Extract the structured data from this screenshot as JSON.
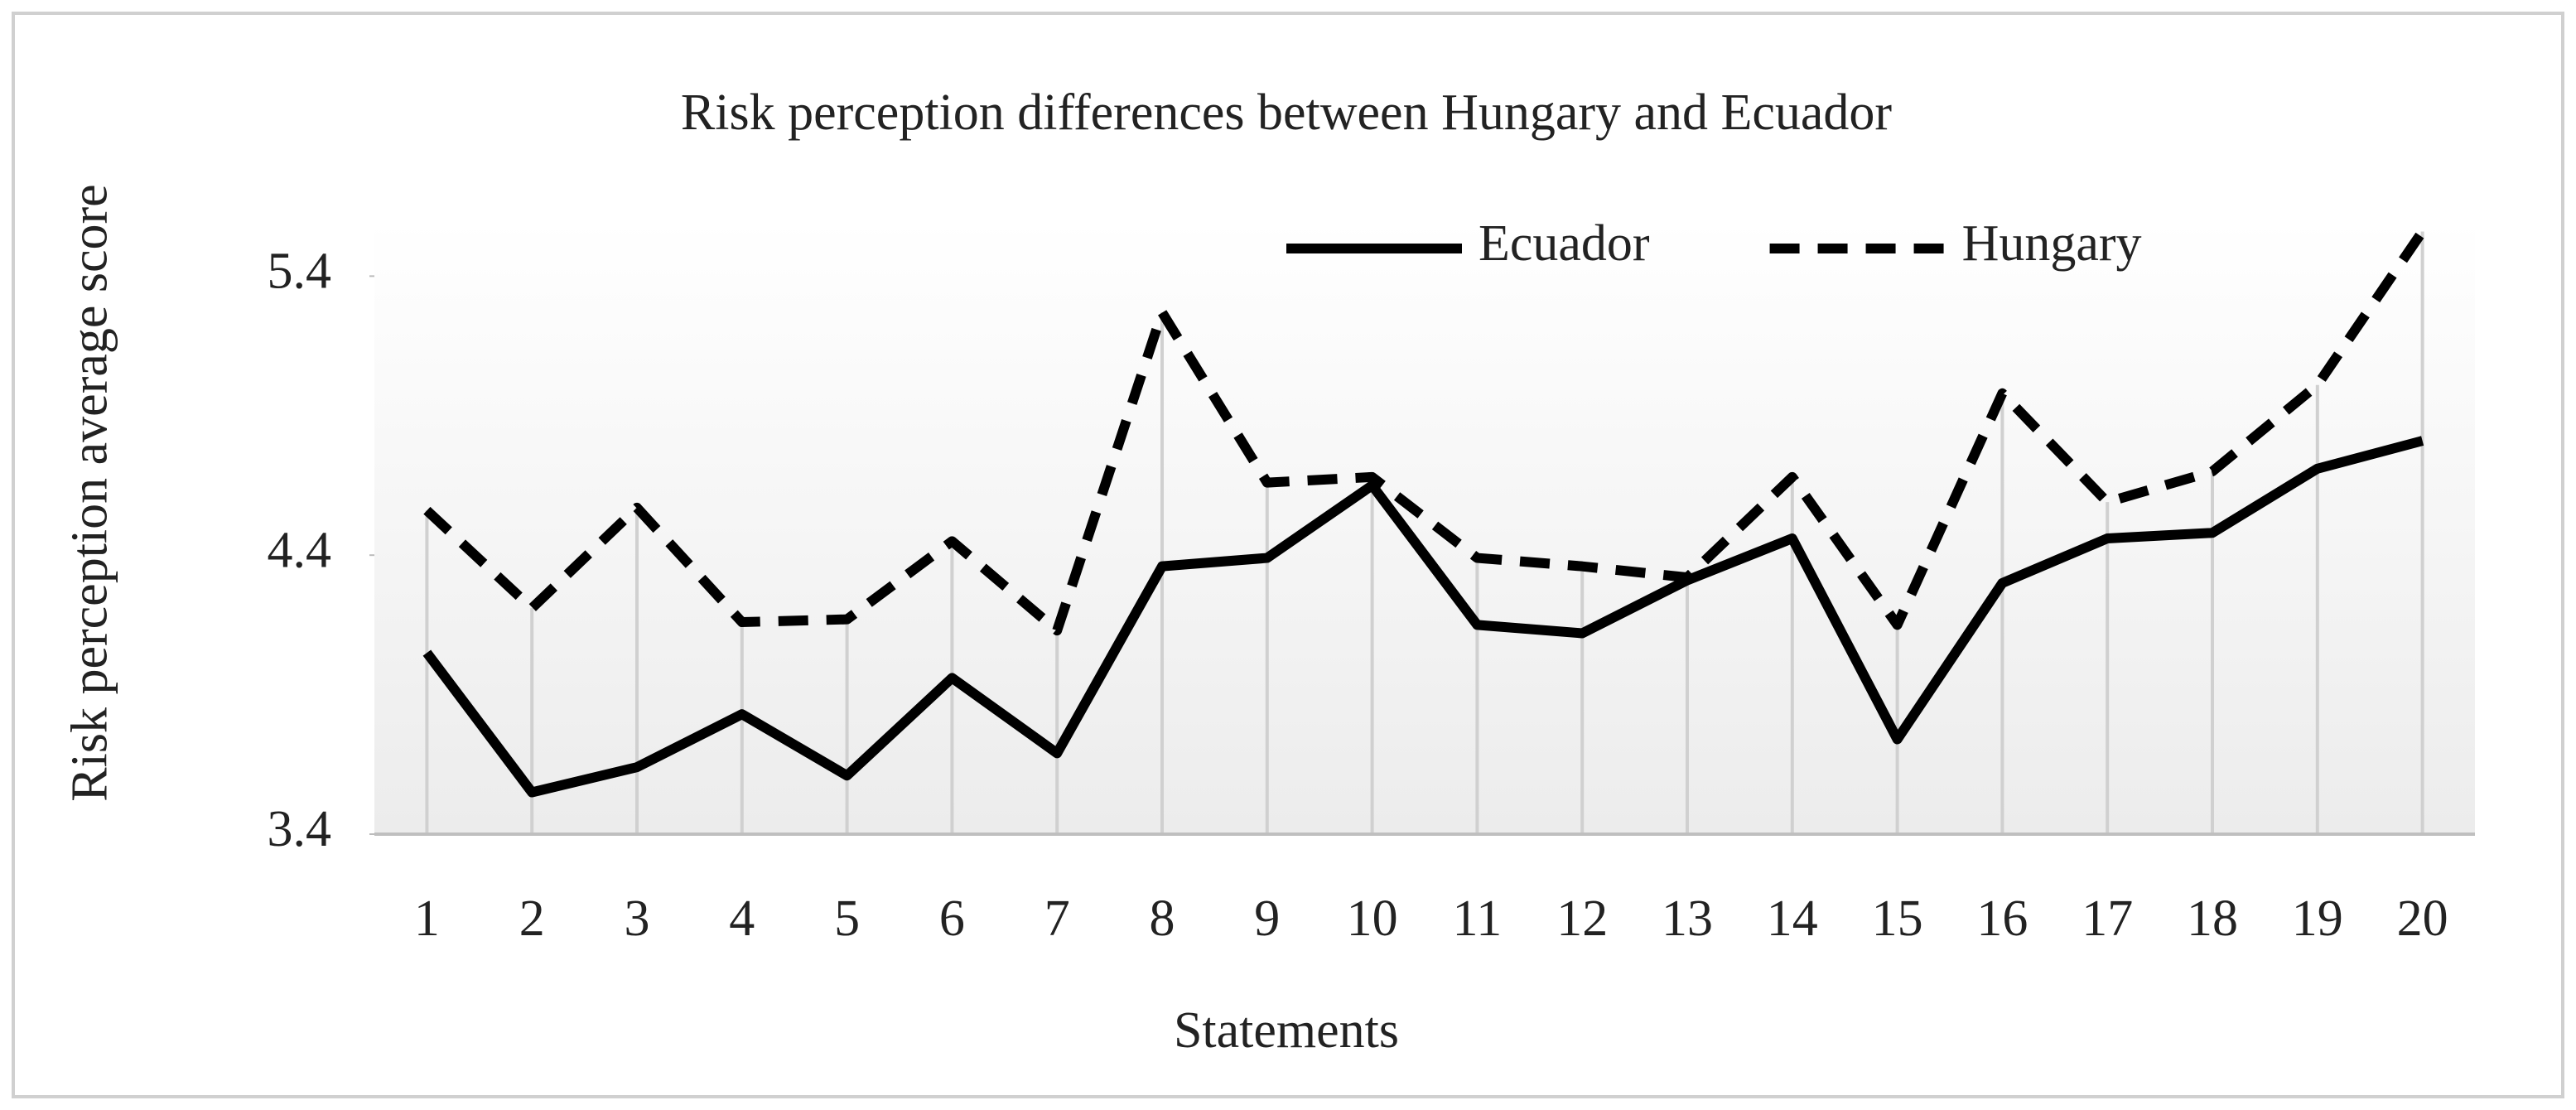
{
  "chart_data": {
    "type": "line",
    "title": "Risk perception differences between Hungary and Ecuador",
    "x_label": "Statements",
    "y_label": "Risk perception average score",
    "categories": [
      "1",
      "2",
      "3",
      "4",
      "5",
      "6",
      "7",
      "8",
      "9",
      "10",
      "11",
      "12",
      "13",
      "14",
      "15",
      "16",
      "17",
      "18",
      "19",
      "20"
    ],
    "series": [
      {
        "name": "Ecuador",
        "color": "#000000",
        "style": "solid",
        "values": [
          4.05,
          3.55,
          3.64,
          3.83,
          3.61,
          3.96,
          3.69,
          4.36,
          4.39,
          4.65,
          4.15,
          4.12,
          4.31,
          4.46,
          3.74,
          4.3,
          4.46,
          4.48,
          4.71,
          4.81
        ]
      },
      {
        "name": "Hungary",
        "color": "#000000",
        "style": "dashed",
        "values": [
          4.56,
          4.21,
          4.57,
          4.16,
          4.17,
          4.45,
          4.13,
          5.27,
          4.66,
          4.68,
          4.39,
          4.36,
          4.32,
          4.68,
          4.15,
          4.98,
          4.59,
          4.7,
          5.01,
          5.56
        ]
      }
    ],
    "ylim": [
      3.4,
      5.6
    ],
    "yticks": [
      3.4,
      4.4,
      5.4
    ],
    "drop_lines": true,
    "legend": "top-right"
  }
}
